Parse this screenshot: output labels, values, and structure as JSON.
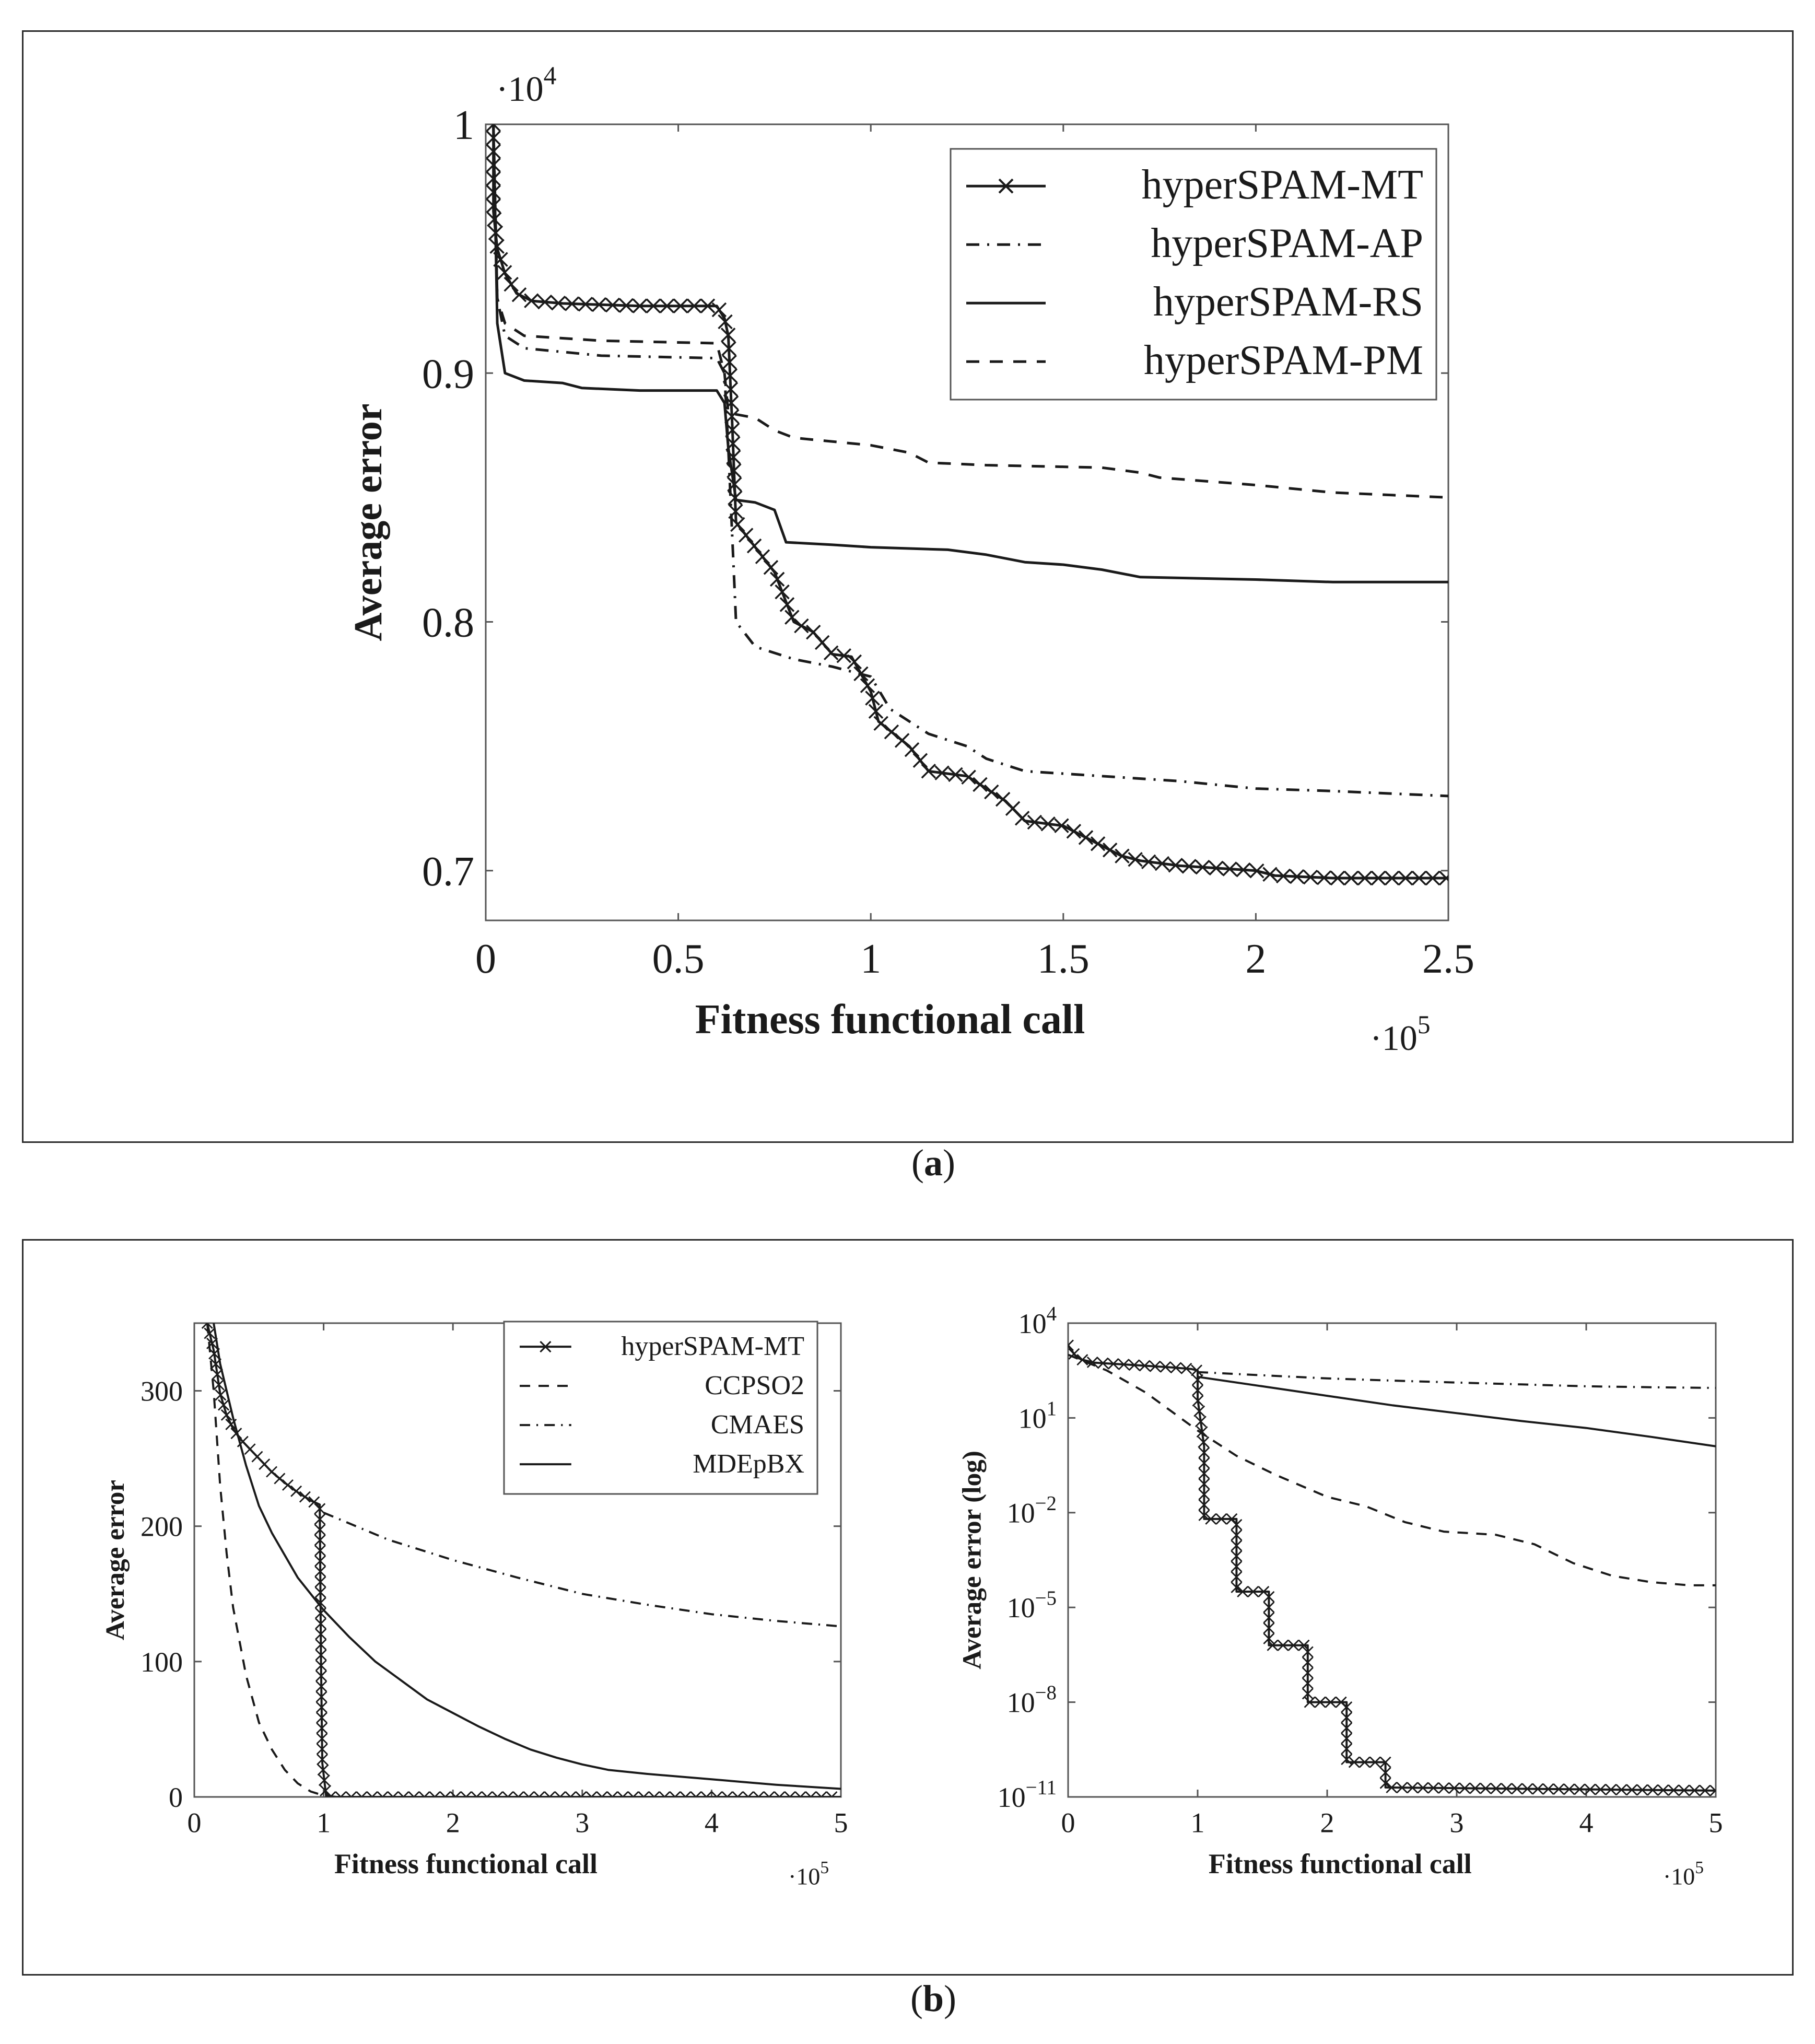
{
  "captions": {
    "a": "a",
    "b": "b"
  },
  "chart_data": [
    {
      "id": "a",
      "type": "line",
      "xlabel": "Fitness functional call",
      "ylabel": "Average error",
      "x_multiplier": "·10",
      "x_multiplier_exp": "5",
      "y_multiplier": "·10",
      "y_multiplier_exp": "4",
      "xlim": [
        0,
        2.5
      ],
      "ylim": [
        0.68,
        1.0
      ],
      "xticks": [
        "0",
        "0.5",
        "1",
        "1.5",
        "2",
        "2.5"
      ],
      "xtick_values": [
        0,
        0.5,
        1,
        1.5,
        2,
        2.5
      ],
      "yticks": [
        "0.7",
        "0.8",
        "0.9",
        "1"
      ],
      "ytick_values": [
        0.7,
        0.8,
        0.9,
        1.0
      ],
      "legend_position": "top-right",
      "series": [
        {
          "name": "hyperSPAM-MT",
          "style": "marker-x",
          "points": [
            [
              0.02,
              1.0
            ],
            [
              0.02,
              0.965
            ],
            [
              0.03,
              0.95
            ],
            [
              0.05,
              0.94
            ],
            [
              0.08,
              0.932
            ],
            [
              0.12,
              0.929
            ],
            [
              0.2,
              0.928
            ],
            [
              0.4,
              0.927
            ],
            [
              0.6,
              0.927
            ],
            [
              0.62,
              0.922
            ],
            [
              0.63,
              0.915
            ],
            [
              0.64,
              0.88
            ],
            [
              0.65,
              0.84
            ],
            [
              0.7,
              0.83
            ],
            [
              0.75,
              0.82
            ],
            [
              0.8,
              0.8
            ],
            [
              0.85,
              0.796
            ],
            [
              0.9,
              0.787
            ],
            [
              0.95,
              0.786
            ],
            [
              1.0,
              0.772
            ],
            [
              1.02,
              0.76
            ],
            [
              1.1,
              0.75
            ],
            [
              1.15,
              0.74
            ],
            [
              1.25,
              0.738
            ],
            [
              1.3,
              0.733
            ],
            [
              1.35,
              0.728
            ],
            [
              1.4,
              0.72
            ],
            [
              1.5,
              0.718
            ],
            [
              1.55,
              0.714
            ],
            [
              1.6,
              0.71
            ],
            [
              1.65,
              0.706
            ],
            [
              1.7,
              0.704
            ],
            [
              1.8,
              0.702
            ],
            [
              1.9,
              0.701
            ],
            [
              2.0,
              0.7
            ],
            [
              2.05,
              0.698
            ],
            [
              2.2,
              0.697
            ],
            [
              2.5,
              0.697
            ]
          ]
        },
        {
          "name": "hyperSPAM-AP",
          "style": "dash-dot",
          "points": [
            [
              0.02,
              1.0
            ],
            [
              0.03,
              0.93
            ],
            [
              0.05,
              0.915
            ],
            [
              0.1,
              0.91
            ],
            [
              0.3,
              0.907
            ],
            [
              0.6,
              0.906
            ],
            [
              0.62,
              0.9
            ],
            [
              0.63,
              0.87
            ],
            [
              0.65,
              0.8
            ],
            [
              0.7,
              0.79
            ],
            [
              0.8,
              0.785
            ],
            [
              0.9,
              0.782
            ],
            [
              1.0,
              0.778
            ],
            [
              1.05,
              0.765
            ],
            [
              1.15,
              0.755
            ],
            [
              1.25,
              0.75
            ],
            [
              1.3,
              0.745
            ],
            [
              1.4,
              0.74
            ],
            [
              1.6,
              0.738
            ],
            [
              1.8,
              0.736
            ],
            [
              2.0,
              0.733
            ],
            [
              2.2,
              0.732
            ],
            [
              2.5,
              0.73
            ]
          ]
        },
        {
          "name": "hyperSPAM-RS",
          "style": "solid",
          "points": [
            [
              0.02,
              1.0
            ],
            [
              0.03,
              0.92
            ],
            [
              0.05,
              0.9
            ],
            [
              0.1,
              0.897
            ],
            [
              0.2,
              0.896
            ],
            [
              0.25,
              0.894
            ],
            [
              0.4,
              0.893
            ],
            [
              0.6,
              0.893
            ],
            [
              0.62,
              0.888
            ],
            [
              0.63,
              0.87
            ],
            [
              0.65,
              0.849
            ],
            [
              0.7,
              0.848
            ],
            [
              0.75,
              0.845
            ],
            [
              0.78,
              0.832
            ],
            [
              0.9,
              0.831
            ],
            [
              1.0,
              0.83
            ],
            [
              1.2,
              0.829
            ],
            [
              1.3,
              0.827
            ],
            [
              1.4,
              0.824
            ],
            [
              1.5,
              0.823
            ],
            [
              1.6,
              0.821
            ],
            [
              1.7,
              0.818
            ],
            [
              2.0,
              0.817
            ],
            [
              2.2,
              0.816
            ],
            [
              2.5,
              0.816
            ]
          ]
        },
        {
          "name": "hyperSPAM-PM",
          "style": "dashed",
          "points": [
            [
              0.02,
              1.0
            ],
            [
              0.03,
              0.93
            ],
            [
              0.05,
              0.92
            ],
            [
              0.1,
              0.915
            ],
            [
              0.3,
              0.913
            ],
            [
              0.6,
              0.912
            ],
            [
              0.62,
              0.9
            ],
            [
              0.63,
              0.884
            ],
            [
              0.7,
              0.882
            ],
            [
              0.75,
              0.877
            ],
            [
              0.8,
              0.874
            ],
            [
              1.0,
              0.871
            ],
            [
              1.1,
              0.868
            ],
            [
              1.15,
              0.864
            ],
            [
              1.3,
              0.863
            ],
            [
              1.6,
              0.862
            ],
            [
              1.7,
              0.86
            ],
            [
              1.75,
              0.858
            ],
            [
              2.0,
              0.855
            ],
            [
              2.2,
              0.852
            ],
            [
              2.5,
              0.85
            ]
          ]
        }
      ]
    },
    {
      "id": "b-left",
      "type": "line",
      "xlabel": "Fitness functional call",
      "ylabel": "Average error",
      "x_multiplier": "·10",
      "x_multiplier_exp": "5",
      "xlim": [
        0,
        5
      ],
      "ylim": [
        0,
        350
      ],
      "xticks": [
        "0",
        "1",
        "2",
        "3",
        "4",
        "5"
      ],
      "xtick_values": [
        0,
        1,
        2,
        3,
        4,
        5
      ],
      "yticks": [
        "0",
        "100",
        "200",
        "300"
      ],
      "ytick_values": [
        0,
        100,
        200,
        300
      ],
      "legend_position": "top-right",
      "series": [
        {
          "name": "hyperSPAM-MT",
          "style": "marker-x",
          "points": [
            [
              0.1,
              350
            ],
            [
              0.15,
              330
            ],
            [
              0.2,
              298
            ],
            [
              0.25,
              282
            ],
            [
              0.3,
              272
            ],
            [
              0.35,
              265
            ],
            [
              0.4,
              260
            ],
            [
              0.5,
              250
            ],
            [
              0.6,
              240
            ],
            [
              0.7,
              232
            ],
            [
              0.8,
              225
            ],
            [
              0.9,
              219
            ],
            [
              0.97,
              216
            ],
            [
              0.98,
              100
            ],
            [
              0.99,
              25
            ],
            [
              1.02,
              0
            ],
            [
              2,
              0
            ],
            [
              3,
              0
            ],
            [
              4,
              0
            ],
            [
              5,
              0
            ]
          ]
        },
        {
          "name": "CCPSO2",
          "style": "dashed",
          "points": [
            [
              0.1,
              350
            ],
            [
              0.15,
              300
            ],
            [
              0.2,
              230
            ],
            [
              0.25,
              180
            ],
            [
              0.3,
              140
            ],
            [
              0.4,
              90
            ],
            [
              0.5,
              55
            ],
            [
              0.6,
              35
            ],
            [
              0.7,
              20
            ],
            [
              0.8,
              10
            ],
            [
              0.9,
              4
            ],
            [
              1.0,
              1
            ],
            [
              1.1,
              0
            ],
            [
              5,
              0
            ]
          ]
        },
        {
          "name": "CMAES",
          "style": "dash-dot",
          "points": [
            [
              1.0,
              210
            ],
            [
              1.5,
              190
            ],
            [
              2.0,
              175
            ],
            [
              2.5,
              162
            ],
            [
              3.0,
              150
            ],
            [
              3.5,
              142
            ],
            [
              4.0,
              135
            ],
            [
              4.5,
              130
            ],
            [
              5.0,
              126
            ]
          ]
        },
        {
          "name": "MDEpBX",
          "style": "solid",
          "points": [
            [
              0.15,
              350
            ],
            [
              0.2,
              320
            ],
            [
              0.3,
              280
            ],
            [
              0.4,
              245
            ],
            [
              0.5,
              215
            ],
            [
              0.6,
              195
            ],
            [
              0.8,
              162
            ],
            [
              1.0,
              138
            ],
            [
              1.2,
              118
            ],
            [
              1.4,
              100
            ],
            [
              1.6,
              86
            ],
            [
              1.8,
              72
            ],
            [
              2.0,
              62
            ],
            [
              2.2,
              52
            ],
            [
              2.4,
              43
            ],
            [
              2.6,
              35
            ],
            [
              2.8,
              29
            ],
            [
              3.0,
              24
            ],
            [
              3.2,
              20
            ],
            [
              3.5,
              17
            ],
            [
              4.0,
              13
            ],
            [
              4.5,
              9
            ],
            [
              5.0,
              6
            ]
          ]
        }
      ]
    },
    {
      "id": "b-right",
      "type": "line",
      "xlabel": "Fitness functional call",
      "ylabel": "Average error (log)",
      "x_multiplier": "·10",
      "x_multiplier_exp": "5",
      "xlim": [
        0,
        5
      ],
      "ylim_log10": [
        -11,
        4
      ],
      "xticks": [
        "0",
        "1",
        "2",
        "3",
        "4",
        "5"
      ],
      "xtick_values": [
        0,
        1,
        2,
        3,
        4,
        5
      ],
      "yticks": [
        {
          "base": "10",
          "exp": "4",
          "value": 4
        },
        {
          "base": "10",
          "exp": "1",
          "value": 1
        },
        {
          "base": "10",
          "exp": "−2",
          "value": -2
        },
        {
          "base": "10",
          "exp": "−5",
          "value": -5
        },
        {
          "base": "10",
          "exp": "−8",
          "value": -8
        },
        {
          "base": "10",
          "exp": "−11",
          "value": -11
        }
      ],
      "series": [
        {
          "name": "hyperSPAM-MT",
          "style": "marker-x",
          "points": [
            [
              0,
              3.3
            ],
            [
              0.05,
              3.0
            ],
            [
              0.1,
              2.85
            ],
            [
              0.2,
              2.75
            ],
            [
              0.4,
              2.7
            ],
            [
              0.6,
              2.65
            ],
            [
              0.8,
              2.6
            ],
            [
              0.95,
              2.55
            ],
            [
              1.0,
              2.5
            ],
            [
              1.0,
              1.6
            ],
            [
              1.05,
              0.1
            ],
            [
              1.05,
              -2.2
            ],
            [
              1.3,
              -2.2
            ],
            [
              1.3,
              -4.5
            ],
            [
              1.55,
              -4.5
            ],
            [
              1.55,
              -6.2
            ],
            [
              1.85,
              -6.2
            ],
            [
              1.85,
              -8.0
            ],
            [
              2.15,
              -8.0
            ],
            [
              2.15,
              -9.9
            ],
            [
              2.45,
              -9.9
            ],
            [
              2.45,
              -10.7
            ],
            [
              5.0,
              -10.8
            ]
          ]
        },
        {
          "name": "CCPSO2",
          "style": "dashed",
          "points": [
            [
              0,
              3.0
            ],
            [
              0.3,
              2.5
            ],
            [
              0.6,
              1.8
            ],
            [
              0.8,
              1.2
            ],
            [
              1.0,
              0.6
            ],
            [
              1.3,
              -0.2
            ],
            [
              1.6,
              -0.8
            ],
            [
              2.0,
              -1.5
            ],
            [
              2.3,
              -1.8
            ],
            [
              2.6,
              -2.3
            ],
            [
              2.9,
              -2.6
            ],
            [
              3.3,
              -2.7
            ],
            [
              3.6,
              -3.0
            ],
            [
              3.9,
              -3.6
            ],
            [
              4.2,
              -4.0
            ],
            [
              4.5,
              -4.2
            ],
            [
              4.8,
              -4.3
            ],
            [
              5.0,
              -4.3
            ]
          ]
        },
        {
          "name": "CMAES",
          "style": "dash-dot",
          "points": [
            [
              1.0,
              2.45
            ],
            [
              1.5,
              2.35
            ],
            [
              2.0,
              2.25
            ],
            [
              2.5,
              2.18
            ],
            [
              3.0,
              2.12
            ],
            [
              3.5,
              2.06
            ],
            [
              4.0,
              2.0
            ],
            [
              4.5,
              1.97
            ],
            [
              5.0,
              1.95
            ]
          ]
        },
        {
          "name": "MDEpBX",
          "style": "solid",
          "points": [
            [
              1.0,
              2.3
            ],
            [
              1.5,
              2.0
            ],
            [
              2.0,
              1.7
            ],
            [
              2.5,
              1.4
            ],
            [
              3.0,
              1.15
            ],
            [
              3.5,
              0.9
            ],
            [
              4.0,
              0.68
            ],
            [
              4.5,
              0.4
            ],
            [
              5.0,
              0.1
            ]
          ]
        }
      ]
    }
  ]
}
